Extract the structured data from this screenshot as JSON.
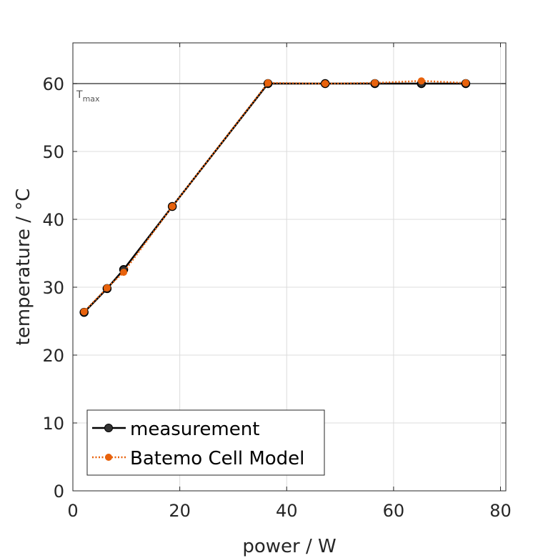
{
  "chart_data": {
    "type": "line",
    "xlabel": "power / W",
    "ylabel": "temperature / °C",
    "xlim": [
      0,
      81
    ],
    "ylim": [
      0,
      66
    ],
    "xticks": [
      0,
      20,
      40,
      60,
      80
    ],
    "yticks": [
      0,
      10,
      20,
      30,
      40,
      50,
      60
    ],
    "grid": true,
    "legend_position": "bottom-left",
    "reference_line": {
      "y": 60,
      "label_main": "T",
      "label_sub": "max",
      "color": "#4d4d4d"
    },
    "series": [
      {
        "name": "measurement",
        "style": "solid",
        "color": "#000000",
        "marker_fill": "#333333",
        "x": [
          2.1,
          6.4,
          9.5,
          18.6,
          36.5,
          47.2,
          56.5,
          65.2,
          73.5
        ],
        "y": [
          26.3,
          29.8,
          32.6,
          41.9,
          60.0,
          60.0,
          60.0,
          60.0,
          60.0
        ]
      },
      {
        "name": "Batemo Cell Model",
        "style": "dotted",
        "color": "#e8620c",
        "marker_fill": "#e8620c",
        "x": [
          2.1,
          6.4,
          9.5,
          18.6,
          36.5,
          47.2,
          56.5,
          65.2,
          73.5
        ],
        "y": [
          26.4,
          29.9,
          32.2,
          41.9,
          60.1,
          60.0,
          60.1,
          60.4,
          60.1
        ]
      }
    ]
  }
}
